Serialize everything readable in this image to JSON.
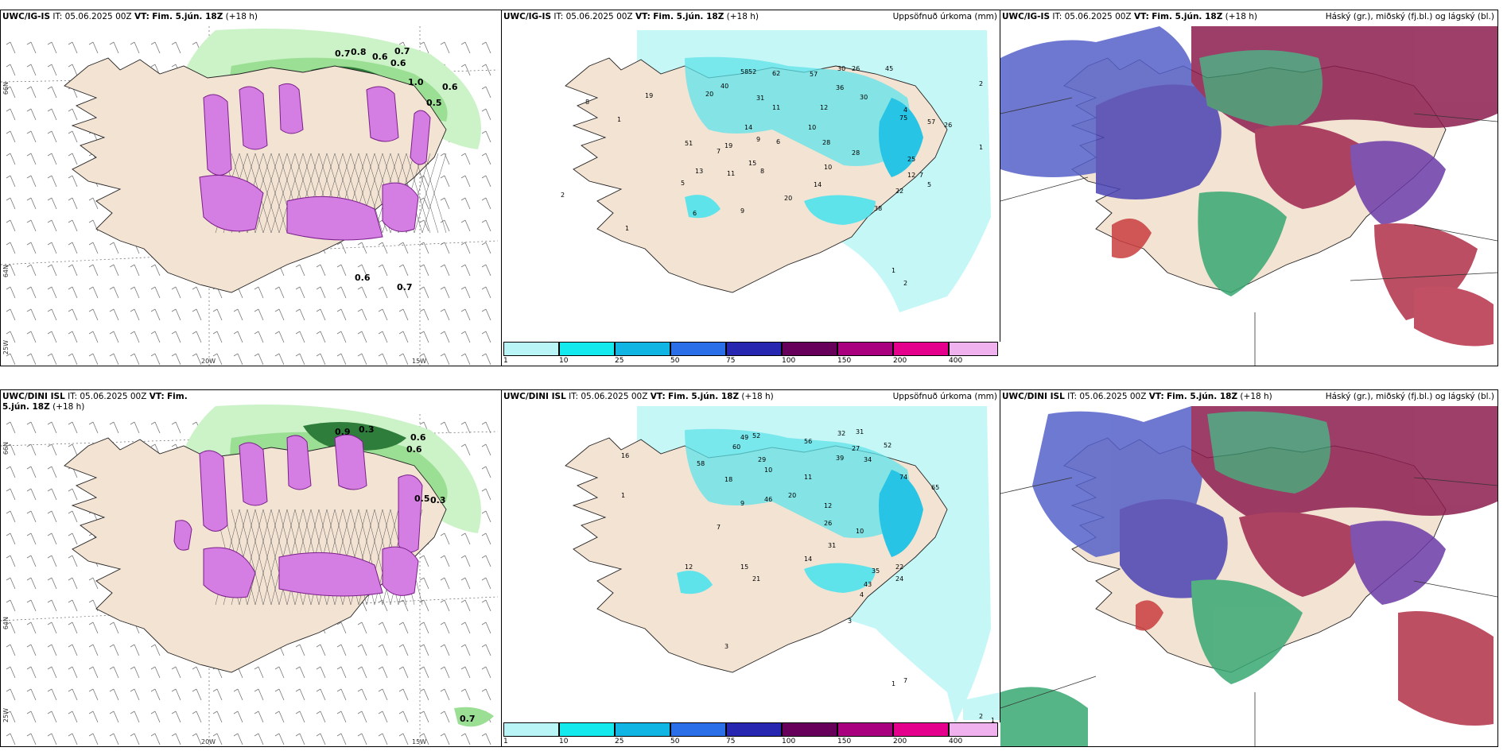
{
  "panels": {
    "top_left": {
      "model": "UWC/IG-IS",
      "it_label": "IT:",
      "it": "05.06.2025 00Z",
      "vt_label": "VT:",
      "vt": "Fim. 5.jún. 18Z",
      "lead": "(+18 h)"
    },
    "top_mid": {
      "model": "UWC/IG-IS",
      "it_label": "IT:",
      "it": "05.06.2025 00Z",
      "vt_label": "VT:",
      "vt": "Fim. 5.jún. 18Z",
      "lead": "(+18 h)",
      "right_title": "Uppsöfnuð úrkoma (mm)"
    },
    "top_right": {
      "model": "UWC/IG-IS",
      "it_label": "IT:",
      "it": "05.06.2025 00Z",
      "vt_label": "VT:",
      "vt": "Fim. 5.jún. 18Z",
      "lead": "(+18 h)",
      "right_title": "Háský (gr.), miðský (fj.bl.) og lágský (bl.)"
    },
    "bot_left": {
      "model": "UWC/DINI ISL",
      "it_label": "IT:",
      "it": "05.06.2025 00Z",
      "vt_label": "VT:",
      "vt": "Fim. 5.jún. 18Z",
      "lead": "(+18 h)"
    },
    "bot_mid": {
      "model": "UWC/DINI ISL",
      "it_label": "IT:",
      "it": "05.06.2025 00Z",
      "vt_label": "VT:",
      "vt": "Fim. 5.jún. 18Z",
      "lead": "(+18 h)",
      "right_title": "Uppsöfnuð úrkoma (mm)"
    },
    "bot_right": {
      "model": "UWC/DINI ISL",
      "it_label": "IT:",
      "it": "05.06.2025 00Z",
      "vt_label": "VT:",
      "vt": "Fim. 5.jún. 18Z",
      "lead": "(+18 h)",
      "right_title": "Háský (gr.), miðský (fj.bl.) og lágský (bl.)"
    }
  },
  "axis_labels": {
    "lat66": "66N",
    "lat64": "64N",
    "lon25": "25W",
    "lon20": "20W",
    "lon15": "15W"
  },
  "colorbar": {
    "ticks": [
      "1",
      "10",
      "25",
      "50",
      "75",
      "100",
      "150",
      "200",
      "400"
    ],
    "colors": [
      "#b9f5f6",
      "#14e9ee",
      "#11b5e4",
      "#2b6fe8",
      "#2626b0",
      "#66005b",
      "#a8007f",
      "#e4008c",
      "#f0b1ef"
    ]
  },
  "wind_labels": {
    "top": [
      "0.7",
      "0.8",
      "0.6",
      "0.7",
      "0.6",
      "0.6",
      "1.0",
      "0.5",
      "0.6",
      "0.7"
    ],
    "bottom": [
      "0.9",
      "0.3",
      "0.6",
      "0.6",
      "0.3",
      "0.5",
      "0.7"
    ]
  },
  "precip_labels": {
    "top": [
      "58",
      "52",
      "62",
      "57",
      "30",
      "26",
      "45",
      "19",
      "20",
      "40",
      "31",
      "12",
      "36",
      "30",
      "75",
      "57",
      "28",
      "26",
      "14",
      "11",
      "10",
      "51",
      "7",
      "19",
      "9",
      "6",
      "10",
      "28",
      "25",
      "7",
      "12",
      "15",
      "5",
      "13",
      "8",
      "11",
      "20",
      "14",
      "22",
      "5",
      "38",
      "9",
      "6",
      "8",
      "1",
      "2",
      "1",
      "4",
      "2",
      "1",
      "1",
      "2"
    ],
    "bottom": [
      "49",
      "52",
      "60",
      "56",
      "32",
      "31",
      "27",
      "52",
      "58",
      "29",
      "18",
      "10",
      "39",
      "34",
      "74",
      "65",
      "31",
      "20",
      "46",
      "12",
      "11",
      "9",
      "26",
      "21",
      "12",
      "15",
      "7",
      "14",
      "10",
      "35",
      "43",
      "22",
      "24",
      "4",
      "3",
      "7",
      "1",
      "3",
      "2",
      "1",
      "16",
      "1"
    ]
  }
}
